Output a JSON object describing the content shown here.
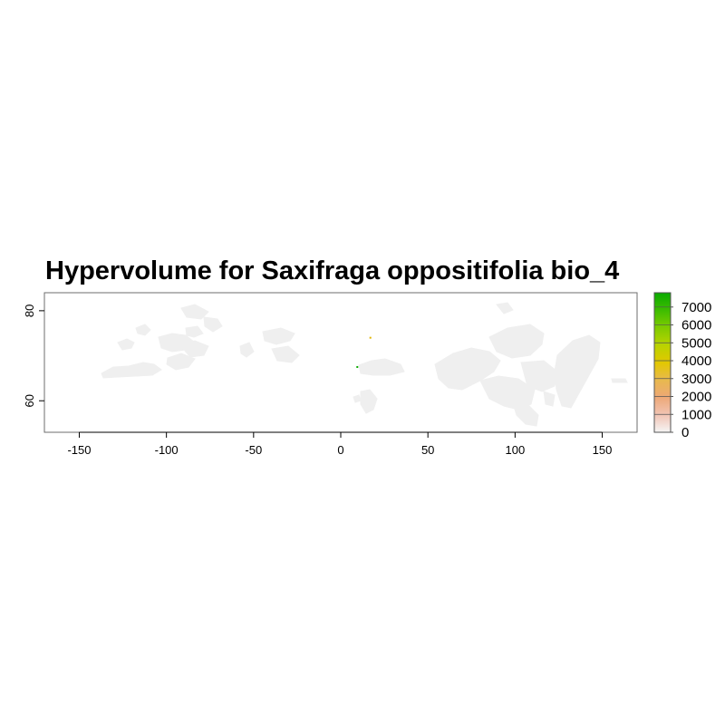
{
  "title": "Hypervolume for Saxifraga oppositifolia bio_4",
  "colors": {
    "land": "#efefef",
    "axis": "#000000",
    "frame": "#6e6e6e",
    "legend_scale": [
      "#f5f5f5",
      "#f1c4b4",
      "#eda877",
      "#e8b94e",
      "#e2c800",
      "#b9d300",
      "#7fcb00",
      "#3dbd00",
      "#0aaa00"
    ],
    "highlight_points": [
      "#e0b500",
      "#0aaa00"
    ]
  },
  "chart_data": {
    "type": "heatmap",
    "title": "Hypervolume for Saxifraga oppositifolia bio_4",
    "xlabel": "",
    "ylabel": "",
    "xlim": [
      -170,
      170
    ],
    "ylim": [
      53,
      84
    ],
    "x_ticks": [
      -150,
      -100,
      -50,
      0,
      50,
      100,
      150
    ],
    "y_ticks": [
      60,
      80
    ],
    "legend": {
      "position": "right",
      "range": [
        0,
        7800
      ],
      "ticks": [
        0,
        1000,
        2000,
        3000,
        4000,
        5000,
        6000,
        7000
      ]
    },
    "grid": false,
    "highlight_points": [
      {
        "lon": 17,
        "lat": 74,
        "value": 3500
      },
      {
        "lon": 9.5,
        "lat": 67.5,
        "value": 7000
      }
    ]
  }
}
